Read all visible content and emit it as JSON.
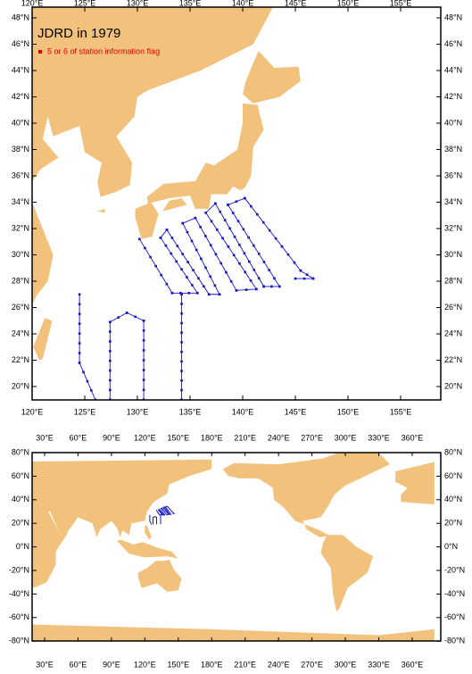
{
  "title": "JDRD in 1979",
  "legend": "5 or 6 of station information flag",
  "regional_map": {
    "lon_labels": [
      "120°E",
      "125°E",
      "130°E",
      "135°E",
      "140°E",
      "145°E",
      "150°E",
      "155°E"
    ],
    "lat_labels": [
      "20°N",
      "22°N",
      "24°N",
      "26°N",
      "28°N",
      "30°N",
      "32°N",
      "34°N",
      "36°N",
      "38°N",
      "40°N",
      "42°N",
      "44°N",
      "46°N",
      "48°N"
    ]
  },
  "global_map": {
    "lon_labels": [
      "30°E",
      "60°E",
      "90°E",
      "120°E",
      "150°E",
      "180°E",
      "210°E",
      "240°E",
      "270°E",
      "300°E",
      "330°E",
      "360°E"
    ],
    "lat_labels": [
      "80°N",
      "60°N",
      "40°N",
      "20°N",
      "0°N",
      "-20°N",
      "-40°N",
      "-60°N",
      "-80°N"
    ]
  }
}
